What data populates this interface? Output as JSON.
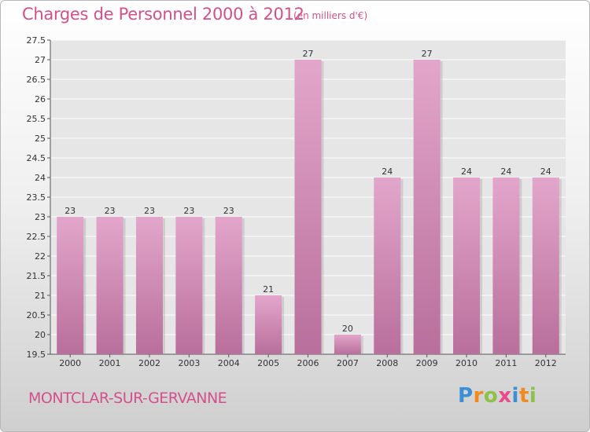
{
  "title": "Charges de Personnel 2000 à 2012",
  "unit_note": "(en milliers d'€)",
  "commune": "MONTCLAR-SUR-GERVANNE",
  "logo_text": "Proxiti",
  "colors": {
    "title": "#d4508a",
    "bar": "#d98cb8",
    "plot_background": "#e6e6e6",
    "grid": "#ffffff"
  },
  "chart_data": {
    "type": "bar",
    "title": "Charges de Personnel 2000 à 2012",
    "xlabel": "",
    "ylabel": "",
    "categories": [
      "2000",
      "2001",
      "2002",
      "2003",
      "2004",
      "2005",
      "2006",
      "2007",
      "2008",
      "2009",
      "2010",
      "2011",
      "2012"
    ],
    "values": [
      23,
      23,
      23,
      23,
      23,
      21,
      27,
      20,
      24,
      27,
      24,
      24,
      24
    ],
    "data_labels": [
      "23",
      "23",
      "23",
      "23",
      "23",
      "21",
      "27",
      "20",
      "24",
      "27",
      "24",
      "24",
      "24"
    ],
    "ylim": [
      19.5,
      27.5
    ],
    "yticks": [
      "19.5",
      "20",
      "20.5",
      "21",
      "21.5",
      "22",
      "22.5",
      "23",
      "23.5",
      "24",
      "24.5",
      "25",
      "25.5",
      "26",
      "26.5",
      "27",
      "27.5"
    ],
    "grid": true,
    "legend": "none"
  }
}
